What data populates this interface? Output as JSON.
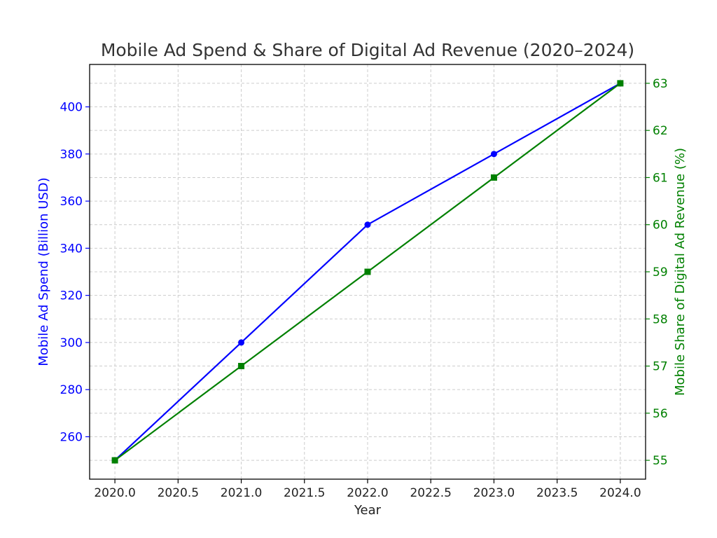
{
  "chart_data": {
    "type": "line",
    "title": "Mobile Ad Spend & Share of Digital Ad Revenue (2020–2024)",
    "xlabel": "Year",
    "x": [
      2020,
      2021,
      2022,
      2023,
      2024
    ],
    "x_ticks": [
      "2020.0",
      "2020.5",
      "2021.0",
      "2021.5",
      "2022.0",
      "2022.5",
      "2023.0",
      "2023.5",
      "2024.0"
    ],
    "xlim": [
      2019.8,
      2024.2
    ],
    "grid": true,
    "legend": "none",
    "left_axis": {
      "label": "Mobile Ad Spend (Billion USD)",
      "color": "#0000ff",
      "ticks": [
        "260",
        "280",
        "300",
        "320",
        "340",
        "360",
        "380",
        "400"
      ],
      "ylim": [
        242,
        418
      ]
    },
    "right_axis": {
      "label": "Mobile Share of Digital Ad Revenue (%)",
      "color": "#008000",
      "ticks": [
        "55",
        "56",
        "57",
        "58",
        "59",
        "60",
        "61",
        "62",
        "63"
      ],
      "ylim": [
        54.6,
        63.4
      ]
    },
    "series": [
      {
        "axis": "left",
        "values": [
          250,
          300,
          350,
          380,
          410
        ],
        "color": "#0000ff",
        "marker": "circle"
      },
      {
        "axis": "right",
        "values": [
          55,
          57,
          59,
          61,
          63
        ],
        "color": "#008000",
        "marker": "square"
      }
    ]
  }
}
